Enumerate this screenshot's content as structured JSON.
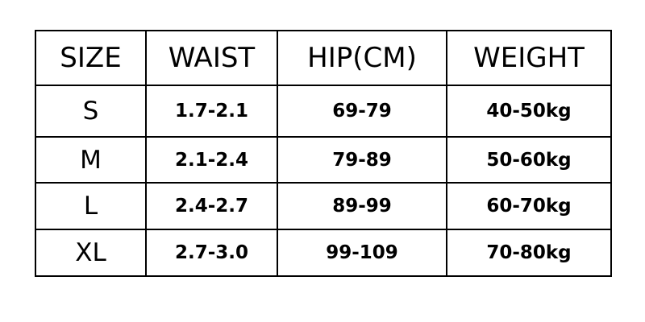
{
  "headers": [
    "SIZE",
    "WAIST",
    "HIP(CM)",
    "WEIGHT"
  ],
  "rows": [
    [
      "S",
      "1.7-2.1",
      "69-79",
      "40-50kg"
    ],
    [
      "M",
      "2.1-2.4",
      "79-89",
      "50-60kg"
    ],
    [
      "L",
      "2.4-2.7",
      "89-99",
      "60-70kg"
    ],
    [
      "XL",
      "2.7-3.0",
      "99-109",
      "70-80kg"
    ]
  ]
}
